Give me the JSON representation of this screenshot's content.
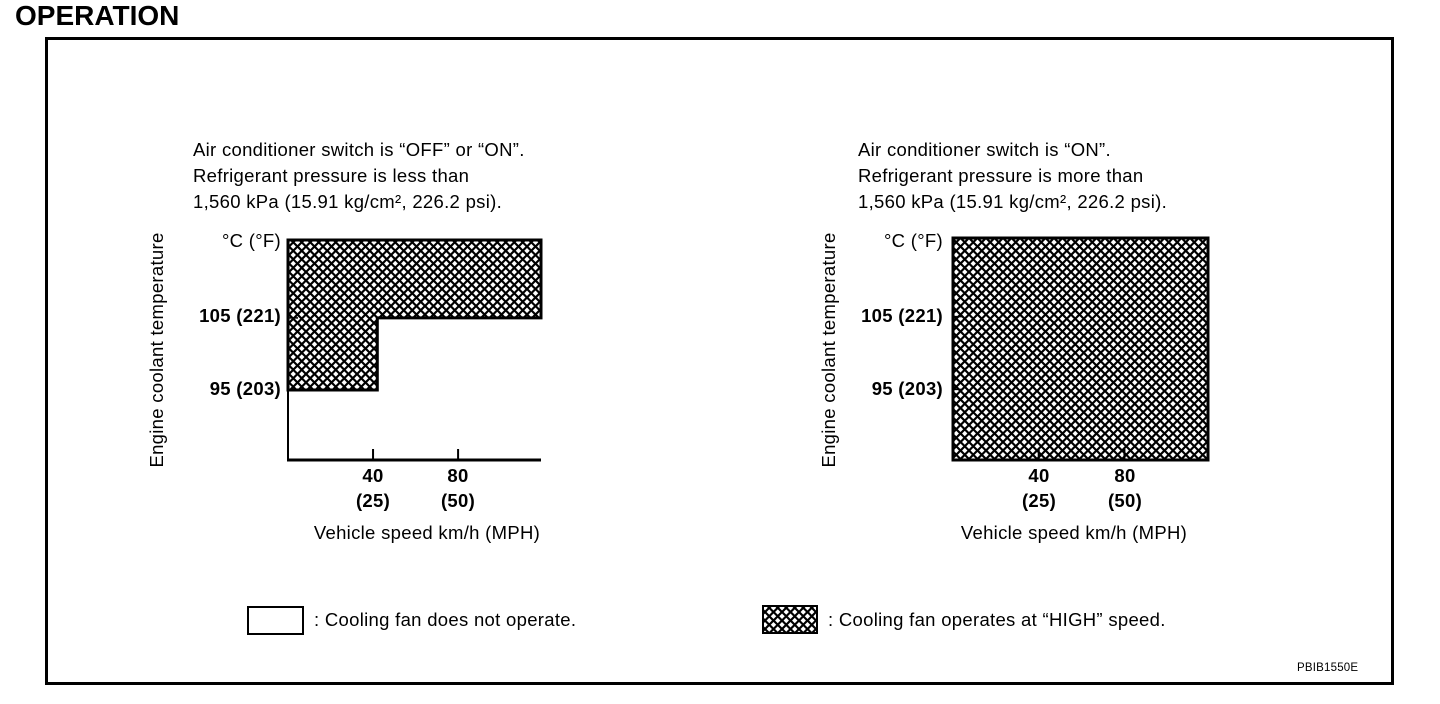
{
  "page": {
    "title": "OPERATION",
    "figure_code": "PBIB1550E"
  },
  "chart_data": [
    {
      "type": "area",
      "caption_lines": [
        "Air conditioner switch is “OFF” or “ON”.",
        "Refrigerant pressure is less than",
        "1,560 kPa (15.91 kg/cm², 226.2 psi)."
      ],
      "xlabel": "Vehicle speed km/h (MPH)",
      "ylabel": "Engine coolant temperature",
      "yunit_label": "°C (°F)",
      "x_ticks": [
        {
          "value": 40,
          "label": "40",
          "sublabel": "(25)"
        },
        {
          "value": 80,
          "label": "80",
          "sublabel": "(50)"
        }
      ],
      "y_ticks": [
        {
          "value": 105,
          "label": "105 (221)"
        },
        {
          "value": 95,
          "label": "95 (203)"
        }
      ],
      "xlim": [
        0,
        119
      ],
      "ylim": [
        85.3,
        115.8
      ],
      "regions": [
        {
          "name": "High speed",
          "fill": "hatched",
          "polygon": [
            [
              0,
              115.8
            ],
            [
              119,
              115.8
            ],
            [
              119,
              105
            ],
            [
              42,
              105
            ],
            [
              42,
              95
            ],
            [
              0,
              95
            ]
          ]
        }
      ]
    },
    {
      "type": "area",
      "caption_lines": [
        "Air conditioner switch is “ON”.",
        "Refrigerant pressure is more than",
        "1,560 kPa (15.91 kg/cm², 226.2 psi)."
      ],
      "xlabel": "Vehicle speed km/h (MPH)",
      "ylabel": "Engine coolant temperature",
      "yunit_label": "°C (°F)",
      "x_ticks": [
        {
          "value": 40,
          "label": "40",
          "sublabel": "(25)"
        },
        {
          "value": 80,
          "label": "80",
          "sublabel": "(50)"
        }
      ],
      "y_ticks": [
        {
          "value": 105,
          "label": "105 (221)"
        },
        {
          "value": 95,
          "label": "95 (203)"
        }
      ],
      "xlim": [
        0,
        119
      ],
      "ylim": [
        85.3,
        115.8
      ],
      "regions": [
        {
          "name": "High speed",
          "fill": "hatched",
          "polygon": [
            [
              0,
              115.8
            ],
            [
              119,
              115.8
            ],
            [
              119,
              85.3
            ],
            [
              0,
              85.3
            ]
          ]
        }
      ]
    }
  ],
  "legend": [
    {
      "style": "blank",
      "text": ": Cooling fan does not operate."
    },
    {
      "style": "hatched",
      "text": ": Cooling fan operates at “HIGH” speed."
    }
  ],
  "colors": {
    "ink": "#000000",
    "paper": "#ffffff"
  }
}
